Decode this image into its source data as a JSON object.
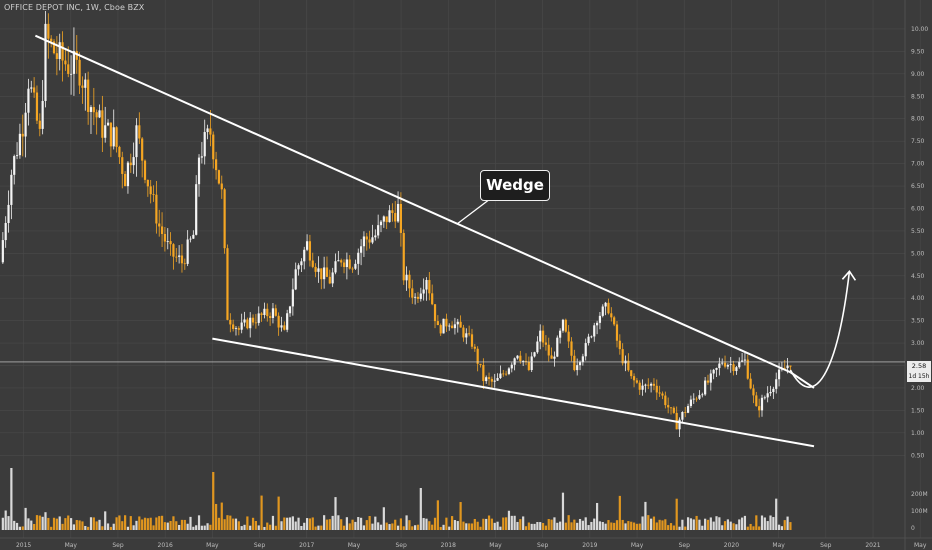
{
  "header": {
    "title": "OFFICE DEPOT INC, 1W, Cboe BZX"
  },
  "annotation": {
    "label": "Wedge"
  },
  "last_price": {
    "value": "2.58",
    "countdown": "1d 15h"
  },
  "colors": {
    "background": "#3b3b3b",
    "grid": "#4a4a4a",
    "candle_up": "#f4f4f4",
    "candle_down": "#f5a623",
    "trendline": "#ffffff",
    "badge": "#ececec"
  },
  "chart_data": {
    "type": "candlestick",
    "timeframe": "1W",
    "y_ticks": [
      "10.00",
      "9.50",
      "9.00",
      "8.50",
      "8.00",
      "7.50",
      "7.00",
      "6.50",
      "6.00",
      "5.50",
      "5.00",
      "4.50",
      "4.00",
      "3.50",
      "3.00",
      "2.50",
      "2.00",
      "1.50",
      "1.00",
      "0.50"
    ],
    "x_ticks": [
      "2015",
      "May",
      "Sep",
      "2016",
      "May",
      "Sep",
      "2017",
      "May",
      "Sep",
      "2018",
      "May",
      "Sep",
      "2019",
      "May",
      "Sep",
      "2020",
      "May",
      "Sep",
      "2021",
      "May"
    ],
    "volume_ticks": [
      "200M",
      "100M",
      "0"
    ],
    "ylim": [
      0.35,
      10.2
    ],
    "x_range": [
      "2014-11",
      "2021-06"
    ],
    "price_path": [
      {
        "x": "2014-11",
        "y": 4.8
      },
      {
        "x": "2014-12",
        "y": 6.8
      },
      {
        "x": "2015-01",
        "y": 7.9
      },
      {
        "x": "2015-01",
        "y": 8.9
      },
      {
        "x": "2015-02",
        "y": 7.6
      },
      {
        "x": "2015-02",
        "y": 9.8
      },
      {
        "x": "2015-03",
        "y": 9.4
      },
      {
        "x": "2015-04",
        "y": 9.2
      },
      {
        "x": "2015-05",
        "y": 9.1
      },
      {
        "x": "2015-06",
        "y": 8.3
      },
      {
        "x": "2015-07",
        "y": 7.8
      },
      {
        "x": "2015-08",
        "y": 7.6
      },
      {
        "x": "2015-09",
        "y": 6.7
      },
      {
        "x": "2015-10",
        "y": 7.7
      },
      {
        "x": "2015-11",
        "y": 6.6
      },
      {
        "x": "2015-12",
        "y": 5.6
      },
      {
        "x": "2016-01",
        "y": 5.0
      },
      {
        "x": "2016-02",
        "y": 4.8
      },
      {
        "x": "2016-03",
        "y": 5.4
      },
      {
        "x": "2016-03",
        "y": 7.2
      },
      {
        "x": "2016-04",
        "y": 7.7
      },
      {
        "x": "2016-05",
        "y": 6.3
      },
      {
        "x": "2016-05",
        "y": 3.6
      },
      {
        "x": "2016-06",
        "y": 3.3
      },
      {
        "x": "2016-07",
        "y": 3.5
      },
      {
        "x": "2016-08",
        "y": 3.6
      },
      {
        "x": "2016-09",
        "y": 3.7
      },
      {
        "x": "2016-10",
        "y": 3.2
      },
      {
        "x": "2016-11",
        "y": 4.6
      },
      {
        "x": "2016-12",
        "y": 5.2
      },
      {
        "x": "2017-01",
        "y": 4.6
      },
      {
        "x": "2017-02",
        "y": 4.4
      },
      {
        "x": "2017-03",
        "y": 4.9
      },
      {
        "x": "2017-04",
        "y": 4.8
      },
      {
        "x": "2017-05",
        "y": 5.3
      },
      {
        "x": "2017-06",
        "y": 5.4
      },
      {
        "x": "2017-07",
        "y": 5.8
      },
      {
        "x": "2017-08",
        "y": 6.0
      },
      {
        "x": "2017-08",
        "y": 4.5
      },
      {
        "x": "2017-09",
        "y": 4.0
      },
      {
        "x": "2017-10",
        "y": 4.5
      },
      {
        "x": "2017-11",
        "y": 3.3
      },
      {
        "x": "2017-12",
        "y": 3.5
      },
      {
        "x": "2018-01",
        "y": 3.3
      },
      {
        "x": "2018-02",
        "y": 3.0
      },
      {
        "x": "2018-03",
        "y": 2.2
      },
      {
        "x": "2018-04",
        "y": 2.1
      },
      {
        "x": "2018-05",
        "y": 2.4
      },
      {
        "x": "2018-06",
        "y": 2.8
      },
      {
        "x": "2018-07",
        "y": 2.4
      },
      {
        "x": "2018-08",
        "y": 3.2
      },
      {
        "x": "2018-09",
        "y": 2.6
      },
      {
        "x": "2018-10",
        "y": 3.4
      },
      {
        "x": "2018-11",
        "y": 2.5
      },
      {
        "x": "2018-12",
        "y": 2.9
      },
      {
        "x": "2019-01",
        "y": 3.6
      },
      {
        "x": "2019-02",
        "y": 3.8
      },
      {
        "x": "2019-03",
        "y": 2.8
      },
      {
        "x": "2019-04",
        "y": 2.2
      },
      {
        "x": "2019-05",
        "y": 2.0
      },
      {
        "x": "2019-06",
        "y": 2.1
      },
      {
        "x": "2019-07",
        "y": 1.7
      },
      {
        "x": "2019-08",
        "y": 1.2
      },
      {
        "x": "2019-09",
        "y": 1.6
      },
      {
        "x": "2019-10",
        "y": 1.9
      },
      {
        "x": "2019-11",
        "y": 2.2
      },
      {
        "x": "2019-12",
        "y": 2.6
      },
      {
        "x": "2020-01",
        "y": 2.5
      },
      {
        "x": "2020-02",
        "y": 2.6
      },
      {
        "x": "2020-03",
        "y": 1.5
      },
      {
        "x": "2020-04",
        "y": 1.9
      },
      {
        "x": "2020-05",
        "y": 2.3
      },
      {
        "x": "2020-06",
        "y": 2.58
      }
    ],
    "upper_trendline": [
      {
        "x": "2015-02",
        "y": 9.85
      },
      {
        "x": "2020-06",
        "y": 2.35
      }
    ],
    "upper_extension": [
      {
        "x": "2020-06",
        "y": 2.35
      },
      {
        "x": "2020-08",
        "y": 2.0
      }
    ],
    "lower_trendline": [
      {
        "x": "2016-05",
        "y": 3.1
      },
      {
        "x": "2020-08",
        "y": 0.7
      }
    ],
    "projection_arrow": [
      {
        "x": "2020-06",
        "y": 2.4
      },
      {
        "x": "2020-08",
        "y": 2.1
      },
      {
        "x": "2020-10",
        "y": 2.8
      },
      {
        "x": "2020-11",
        "y": 4.6
      }
    ]
  }
}
